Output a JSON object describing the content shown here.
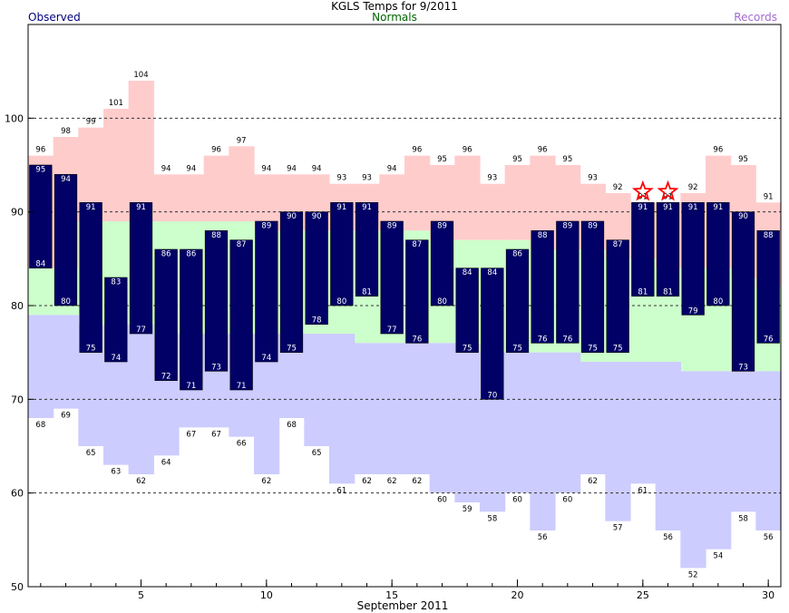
{
  "title": "KGLS Temps for 9/2011",
  "legend": {
    "observed": "Observed",
    "normals": "Normals",
    "records": "Records"
  },
  "colors": {
    "observed": "#000066",
    "normal": "#ccffcc",
    "record_high": "#ffcccc",
    "record_low": "#ccccff",
    "star": "#ff0000"
  },
  "chart_data": {
    "type": "bar",
    "title": "KGLS Temps for 9/2011",
    "xlabel": "September 2011",
    "ylabel": "",
    "xlim": [
      0.5,
      30.5
    ],
    "ylim": [
      50,
      110
    ],
    "xticks": [
      5,
      10,
      15,
      20,
      25,
      30
    ],
    "yticks": [
      50,
      60,
      70,
      80,
      90,
      100
    ],
    "grid": "dashed horizontal at 60, 70, 80, 90, 100",
    "days": [
      1,
      2,
      3,
      4,
      5,
      6,
      7,
      8,
      9,
      10,
      11,
      12,
      13,
      14,
      15,
      16,
      17,
      18,
      19,
      20,
      21,
      22,
      23,
      24,
      25,
      26,
      27,
      28,
      29,
      30
    ],
    "series": [
      {
        "name": "Observed",
        "high": [
          95,
          94,
          91,
          83,
          91,
          86,
          86,
          88,
          87,
          89,
          90,
          90,
          91,
          91,
          89,
          87,
          89,
          84,
          84,
          86,
          88,
          89,
          89,
          87,
          91,
          91,
          91,
          91,
          90,
          88
        ],
        "low": [
          84,
          80,
          75,
          74,
          77,
          72,
          71,
          73,
          71,
          74,
          75,
          78,
          80,
          81,
          77,
          76,
          80,
          75,
          70,
          75,
          76,
          76,
          75,
          75,
          81,
          81,
          79,
          80,
          73,
          76
        ]
      },
      {
        "name": "Normals",
        "high": [
          84,
          84,
          89,
          89,
          89,
          89,
          89,
          89,
          89,
          88,
          88,
          88,
          88,
          88,
          88,
          88,
          87,
          87,
          87,
          87,
          86,
          86,
          86,
          85,
          85,
          84,
          84,
          84,
          83,
          82
        ],
        "low": [
          79,
          79,
          78,
          78,
          78,
          77,
          77,
          77,
          77,
          77,
          77,
          77,
          77,
          76,
          76,
          76,
          76,
          76,
          75,
          75,
          75,
          75,
          74,
          74,
          74,
          74,
          73,
          73,
          73,
          73
        ]
      },
      {
        "name": "Records",
        "high": [
          96,
          98,
          99,
          101,
          104,
          94,
          94,
          96,
          97,
          94,
          94,
          94,
          93,
          93,
          94,
          96,
          95,
          96,
          93,
          95,
          96,
          95,
          93,
          92,
          91,
          91,
          92,
          96,
          95,
          91
        ],
        "low": [
          68,
          69,
          65,
          63,
          62,
          64,
          67,
          67,
          66,
          62,
          68,
          65,
          61,
          62,
          62,
          62,
          60,
          59,
          58,
          60,
          56,
          60,
          62,
          57,
          61,
          56,
          52,
          54,
          58,
          56
        ]
      }
    ],
    "record_set_days": [
      25,
      26
    ]
  }
}
